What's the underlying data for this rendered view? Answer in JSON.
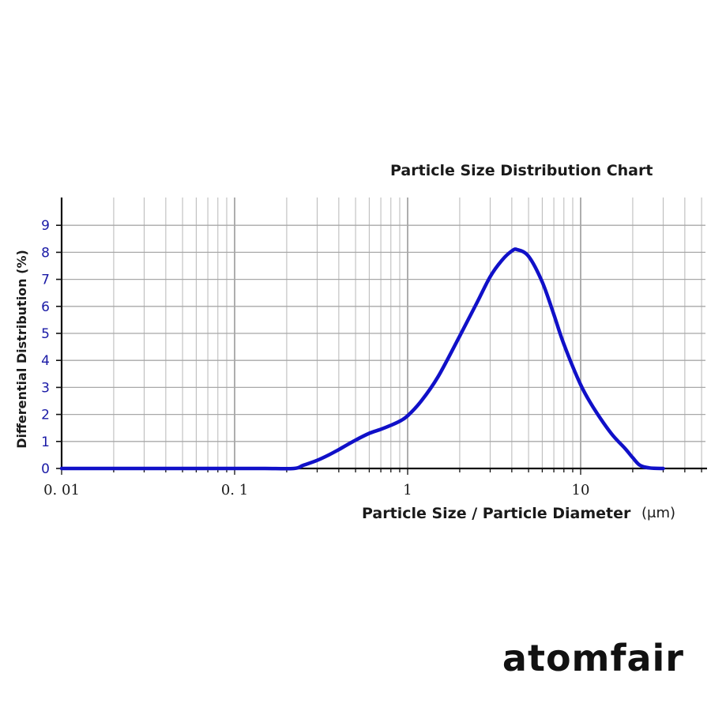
{
  "brand": {
    "name": "atomfair"
  },
  "chart_data": {
    "type": "line",
    "title": "Particle Size Distribution Chart",
    "xlabel": "Particle Size / Particle Diameter",
    "xunit": "(μm)",
    "ylabel": "Differential Distribution (%)",
    "x_scale": "log",
    "xlim": [
      0.01,
      60
    ],
    "ylim": [
      0,
      10
    ],
    "grid": true,
    "x_ticks": [
      {
        "value": 0.01,
        "label": "0. 01"
      },
      {
        "value": 0.1,
        "label": "0. 1"
      },
      {
        "value": 1,
        "label": "1"
      },
      {
        "value": 10,
        "label": "10"
      }
    ],
    "y_ticks": [
      0,
      1,
      2,
      3,
      4,
      5,
      6,
      7,
      8,
      9
    ],
    "line_color": "#1010c8",
    "series": [
      {
        "x": [
          0.01,
          0.02,
          0.05,
          0.1,
          0.15,
          0.22,
          0.25,
          0.3,
          0.35,
          0.4,
          0.5,
          0.6,
          0.7,
          0.8,
          0.9,
          1.0,
          1.2,
          1.5,
          2.0,
          2.5,
          3.0,
          3.5,
          4.0,
          4.3,
          5.0,
          6.0,
          7.0,
          8.0,
          10.0,
          12.0,
          15.0,
          18.0,
          20.0,
          22.0,
          25.0,
          30.0
        ],
        "y": [
          0,
          0,
          0,
          0,
          0,
          0,
          0.12,
          0.3,
          0.5,
          0.7,
          1.05,
          1.3,
          1.45,
          1.6,
          1.75,
          1.95,
          2.5,
          3.4,
          4.9,
          6.1,
          7.1,
          7.7,
          8.05,
          8.1,
          7.85,
          6.9,
          5.7,
          4.6,
          3.1,
          2.2,
          1.3,
          0.75,
          0.4,
          0.12,
          0.02,
          0
        ]
      }
    ]
  }
}
